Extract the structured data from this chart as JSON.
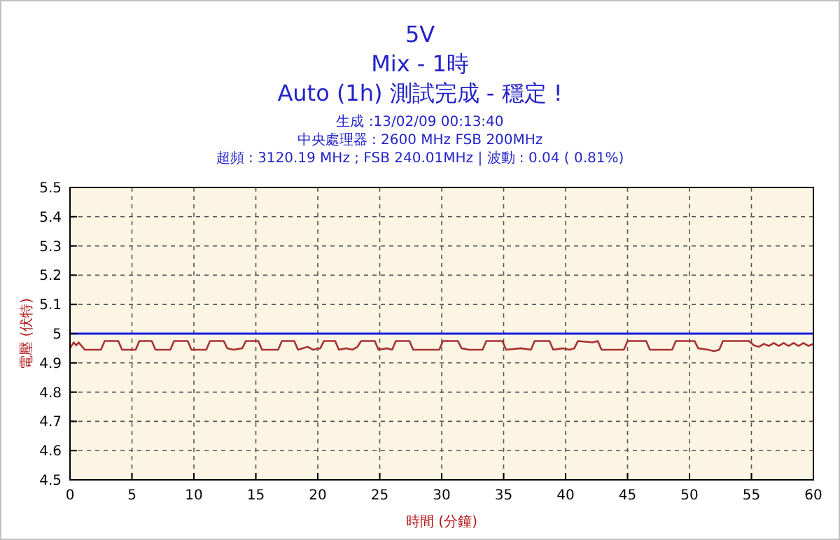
{
  "chart_data": {
    "type": "line",
    "title": "5V",
    "subtitle": "Mix - 1時",
    "annotations": [
      "Auto (1h) 測試完成 - 穩定 !",
      "生成 :13/02/09 00:13:40",
      "中央處理器 : 2600 MHz FSB 200MHz",
      "超頻 : 3120.19 MHz ; FSB 240.01MHz | 波動 : 0.04 ( 0.81%)"
    ],
    "xlabel": "時間 (分鐘)",
    "ylabel": "電壓 (伏特)",
    "xlim": [
      0,
      60
    ],
    "xticks": [
      0,
      5,
      10,
      15,
      20,
      25,
      30,
      35,
      40,
      45,
      50,
      55,
      60
    ],
    "ylim": [
      4.5,
      5.5
    ],
    "yticks": [
      4.5,
      4.6,
      4.7,
      4.8,
      4.9,
      5,
      5.1,
      5.2,
      5.3,
      5.4,
      5.5
    ],
    "grid": true,
    "marker": "none",
    "line_style": "solid",
    "ref_lines": [
      {
        "axis": "y",
        "value": 5,
        "color": "#1a1adc"
      }
    ],
    "series": [
      {
        "color": "#a83232",
        "x": [
          0,
          0.3,
          0.5,
          0.7,
          1.2,
          2.5,
          2.8,
          3.9,
          4.2,
          5.3,
          5.6,
          6.6,
          6.9,
          8.1,
          8.4,
          9.5,
          9.8,
          11.0,
          11.3,
          12.4,
          12.7,
          13.2,
          13.9,
          14.2,
          15.2,
          15.5,
          16.8,
          17.1,
          18.1,
          18.4,
          19.2,
          19.6,
          20.2,
          20.5,
          21.4,
          21.7,
          22.3,
          22.8,
          23.2,
          23.5,
          24.6,
          24.9,
          25.6,
          26.0,
          26.3,
          27.4,
          27.7,
          29.8,
          30.1,
          31.3,
          31.6,
          32.2,
          33.3,
          33.6,
          34.9,
          35.2,
          36.4,
          37.2,
          37.5,
          38.7,
          39.0,
          39.8,
          40.3,
          40.7,
          41.0,
          42.2,
          42.6,
          42.9,
          44.7,
          45.0,
          46.5,
          46.8,
          48.6,
          48.9,
          50.4,
          50.7,
          51.5,
          52.0,
          52.4,
          52.7,
          54.8,
          55.2,
          55.6,
          56.0,
          56.4,
          56.8,
          57.2,
          57.6,
          58.0,
          58.4,
          58.8,
          59.2,
          59.6,
          60
        ],
        "values": [
          4.95,
          4.97,
          4.96,
          4.97,
          4.945,
          4.945,
          4.975,
          4.975,
          4.945,
          4.945,
          4.975,
          4.975,
          4.945,
          4.945,
          4.975,
          4.975,
          4.945,
          4.945,
          4.975,
          4.975,
          4.95,
          4.945,
          4.95,
          4.975,
          4.975,
          4.945,
          4.945,
          4.975,
          4.975,
          4.945,
          4.955,
          4.945,
          4.95,
          4.975,
          4.975,
          4.945,
          4.95,
          4.945,
          4.955,
          4.975,
          4.975,
          4.945,
          4.95,
          4.945,
          4.975,
          4.975,
          4.945,
          4.945,
          4.975,
          4.975,
          4.95,
          4.945,
          4.945,
          4.975,
          4.975,
          4.945,
          4.95,
          4.945,
          4.975,
          4.975,
          4.945,
          4.95,
          4.945,
          4.95,
          4.975,
          4.97,
          4.975,
          4.945,
          4.945,
          4.975,
          4.975,
          4.945,
          4.945,
          4.975,
          4.975,
          4.95,
          4.945,
          4.94,
          4.945,
          4.975,
          4.975,
          4.96,
          4.955,
          4.965,
          4.958,
          4.968,
          4.958,
          4.968,
          4.958,
          4.968,
          4.958,
          4.968,
          4.958,
          4.965
        ]
      }
    ]
  }
}
